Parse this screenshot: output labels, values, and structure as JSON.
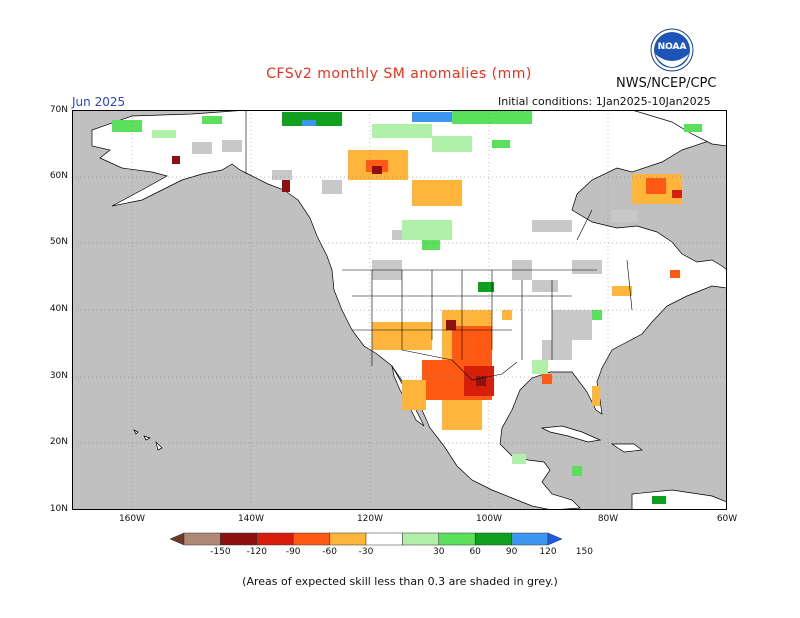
{
  "title": "CFSv2 monthly SM anomalies (mm)",
  "agency": "NWS/NCEP/CPC",
  "logo_text": "NOAA",
  "month": "Jun 2025",
  "initial_conditions": "Initial conditions: 1Jan2025-10Jan2025",
  "footnote": "(Areas of expected skill less than 0.3 are shaded in grey.)",
  "lat_labels": [
    "70N",
    "60N",
    "50N",
    "40N",
    "30N",
    "20N",
    "10N"
  ],
  "lon_labels": [
    "160W",
    "140W",
    "120W",
    "100W",
    "80W",
    "60W"
  ],
  "colorbar": {
    "labels": [
      "-150",
      "-120",
      "-90",
      "-60",
      "-30",
      "30",
      "60",
      "90",
      "120",
      "150"
    ],
    "colors": [
      "#6b3a2a",
      "#b08878",
      "#8e1010",
      "#d61e0a",
      "#ff5a14",
      "#ffb43c",
      "#ffffff",
      "#b0f0a8",
      "#5ae05a",
      "#0fa01e",
      "#3c96f0",
      "#1e5ae6"
    ]
  },
  "colors": {
    "ocean_grey": "#c0c0c0",
    "land_white": "#ffffff",
    "low_skill_grey": "#c8c8c8"
  }
}
